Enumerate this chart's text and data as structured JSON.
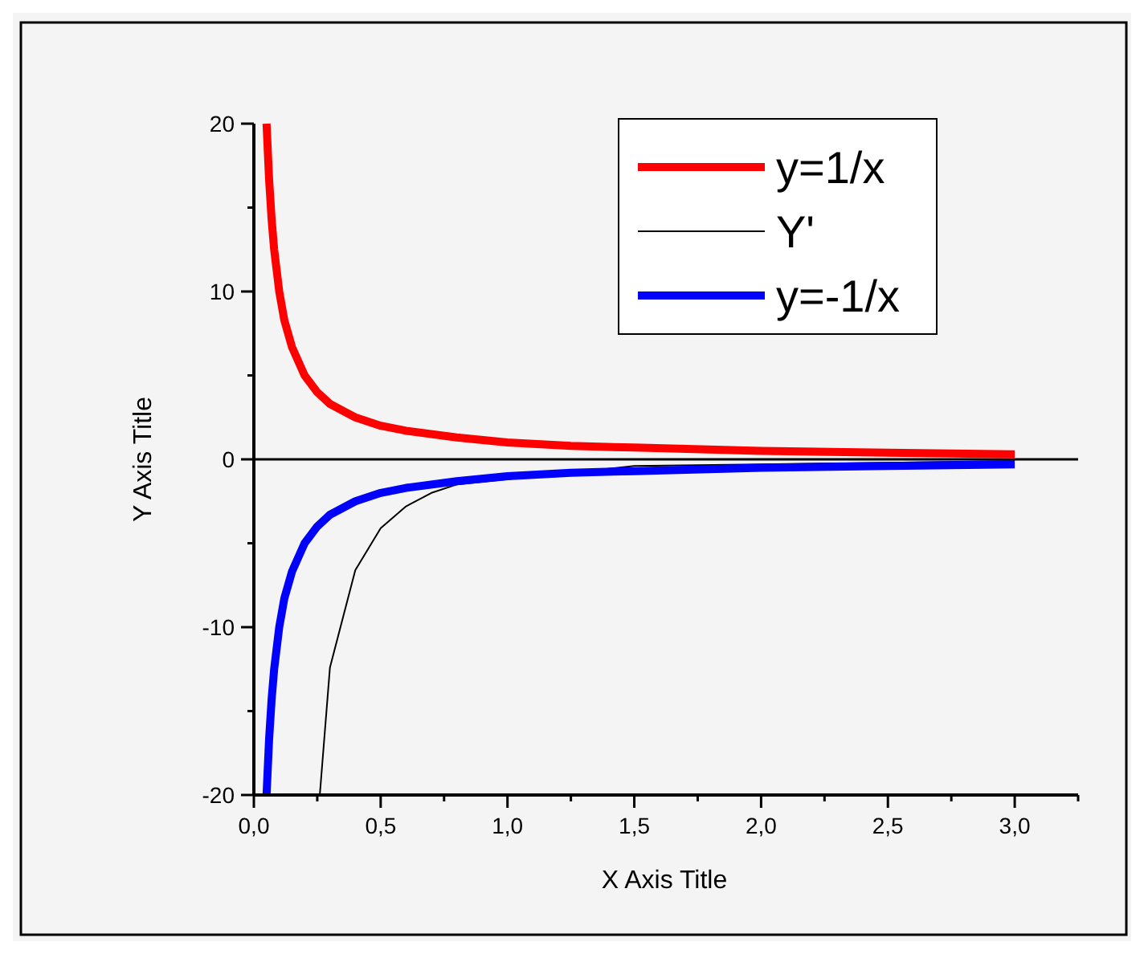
{
  "chart_data": {
    "type": "line",
    "xlabel": "X Axis Title",
    "ylabel": "Y Axis Title",
    "xlim": [
      0,
      3.25
    ],
    "ylim": [
      -20,
      20
    ],
    "xticks": [
      {
        "value": 0,
        "label": "0,0"
      },
      {
        "value": 0.25,
        "label": null
      },
      {
        "value": 0.5,
        "label": "0,5"
      },
      {
        "value": 0.75,
        "label": null
      },
      {
        "value": 1,
        "label": "1,0"
      },
      {
        "value": 1.25,
        "label": null
      },
      {
        "value": 1.5,
        "label": "1,5"
      },
      {
        "value": 1.75,
        "label": null
      },
      {
        "value": 2,
        "label": "2,0"
      },
      {
        "value": 2.25,
        "label": null
      },
      {
        "value": 2.5,
        "label": "2,5"
      },
      {
        "value": 2.75,
        "label": null
      },
      {
        "value": 3,
        "label": "3,0"
      },
      {
        "value": 3.25,
        "label": null
      }
    ],
    "yticks": [
      -20,
      {
        "value": -15,
        "label": null
      },
      -10,
      {
        "value": -5,
        "label": null
      },
      0,
      {
        "value": 5,
        "label": null
      },
      10,
      {
        "value": 15,
        "label": null
      },
      20
    ],
    "legend": "top right",
    "grid": false,
    "marker": "none",
    "line_style": "solid",
    "ref_lines": [
      {
        "axis": "y",
        "value": 0,
        "color": "#000000"
      }
    ],
    "series": [
      {
        "name": "y=1/x",
        "color": "#ff0000",
        "x": [
          0.05,
          0.06,
          0.07,
          0.08,
          0.1,
          0.12,
          0.15,
          0.2,
          0.25,
          0.3,
          0.4,
          0.5,
          0.6,
          0.8,
          1.0,
          1.25,
          1.5,
          2.0,
          2.5,
          3.0
        ],
        "values": [
          20,
          16.7,
          14.3,
          12.5,
          10,
          8.3,
          6.7,
          5,
          4,
          3.3,
          2.5,
          2,
          1.7,
          1.3,
          1,
          0.8,
          0.7,
          0.5,
          0.4,
          0.3
        ]
      },
      {
        "name": "Y'",
        "color": "#000000",
        "x": [
          0.26,
          0.3,
          0.4,
          0.5,
          0.6,
          0.7,
          0.8,
          0.9,
          1.0,
          1.5,
          2.0,
          2.5,
          3.0
        ],
        "values": [
          -20,
          -12.4,
          -6.6,
          -4.1,
          -2.8,
          -2.0,
          -1.5,
          null,
          null,
          -0.4,
          -0.3,
          -0.2,
          -0.1
        ]
      },
      {
        "name": "y=-1/x",
        "color": "#0000ff",
        "x": [
          0.05,
          0.06,
          0.07,
          0.08,
          0.1,
          0.12,
          0.15,
          0.2,
          0.25,
          0.3,
          0.4,
          0.5,
          0.6,
          0.8,
          1.0,
          1.25,
          1.5,
          2.0,
          2.5,
          3.0
        ],
        "values": [
          -20,
          -16.7,
          -14.3,
          -12.5,
          -10,
          -8.3,
          -6.7,
          -5,
          -4,
          -3.3,
          -2.5,
          -2,
          -1.7,
          -1.3,
          -1,
          -0.8,
          -0.7,
          -0.5,
          -0.4,
          -0.3
        ]
      }
    ]
  }
}
